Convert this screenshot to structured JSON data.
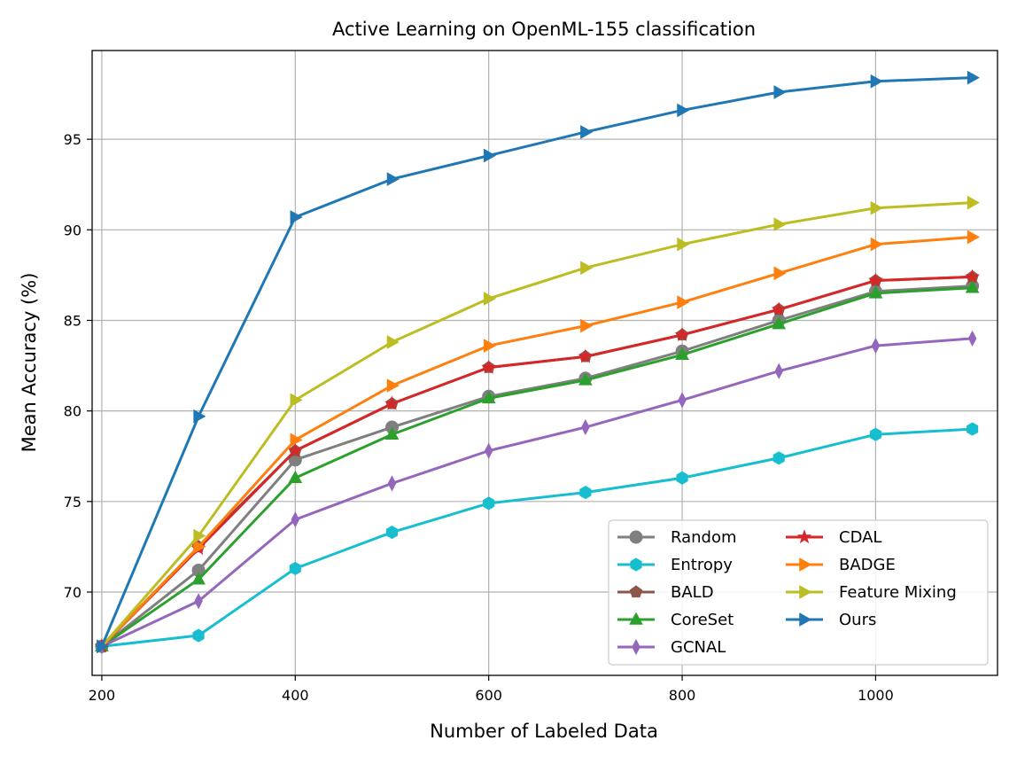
{
  "chart_data": {
    "type": "line",
    "title": "Active Learning on OpenML-155 classification",
    "xlabel": "Number of Labeled Data",
    "ylabel": "Mean Accuracy (%)",
    "xlim": [
      190,
      1126
    ],
    "ylim": [
      65.4,
      99.9
    ],
    "xticks": [
      200,
      400,
      600,
      800,
      1000
    ],
    "yticks": [
      70,
      75,
      80,
      85,
      90,
      95
    ],
    "grid": true,
    "legend_position": "lower-right",
    "x": [
      200,
      300,
      400,
      500,
      600,
      700,
      800,
      900,
      1000,
      1100
    ],
    "series": [
      {
        "name": "Random",
        "color": "#7f7f7f",
        "marker": "circle",
        "values": [
          67.0,
          71.2,
          77.3,
          79.1,
          80.8,
          81.8,
          83.3,
          85.0,
          86.6,
          86.9
        ]
      },
      {
        "name": "Entropy",
        "color": "#17becf",
        "marker": "hexagon",
        "values": [
          67.0,
          67.6,
          71.3,
          73.3,
          74.9,
          75.5,
          76.3,
          77.4,
          78.7,
          79.0
        ]
      },
      {
        "name": "BALD",
        "color": "#8c564b",
        "marker": "pentagon",
        "values": [
          67.0,
          72.5,
          77.8,
          80.4,
          82.4,
          83.0,
          84.2,
          85.6,
          87.2,
          87.4
        ]
      },
      {
        "name": "CoreSet",
        "color": "#2ca02c",
        "marker": "triangle-up",
        "values": [
          67.0,
          70.7,
          76.3,
          78.7,
          80.7,
          81.7,
          83.1,
          84.8,
          86.5,
          86.8
        ]
      },
      {
        "name": "GCNAL",
        "color": "#9467bd",
        "marker": "thin-diamond",
        "values": [
          67.0,
          69.5,
          74.0,
          76.0,
          77.8,
          79.1,
          80.6,
          82.2,
          83.6,
          84.0
        ]
      },
      {
        "name": "CDAL",
        "color": "#d62728",
        "marker": "star",
        "values": [
          67.0,
          72.4,
          77.8,
          80.4,
          82.4,
          83.0,
          84.2,
          85.6,
          87.2,
          87.4
        ]
      },
      {
        "name": "BADGE",
        "color": "#ff7f0e",
        "marker": "triangle-right",
        "values": [
          67.0,
          72.5,
          78.4,
          81.4,
          83.6,
          84.7,
          86.0,
          87.6,
          89.2,
          89.6
        ]
      },
      {
        "name": "Feature Mixing",
        "color": "#bcbd22",
        "marker": "triangle-right",
        "values": [
          67.0,
          73.1,
          80.6,
          83.8,
          86.2,
          87.9,
          89.2,
          90.3,
          91.2,
          91.5
        ]
      },
      {
        "name": "Ours",
        "color": "#1f77b4",
        "marker": "triangle-right",
        "values": [
          67.0,
          79.7,
          90.7,
          92.8,
          94.1,
          95.4,
          96.6,
          97.6,
          98.2,
          98.4
        ]
      }
    ]
  }
}
